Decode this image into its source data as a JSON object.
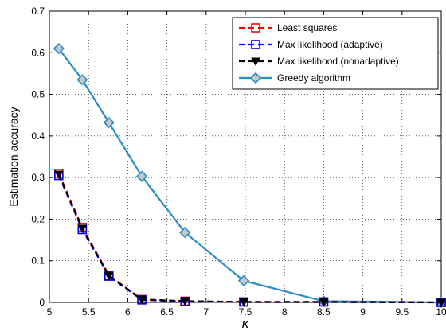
{
  "chart_data": {
    "type": "line",
    "title": "",
    "xlabel": "κ",
    "ylabel": "Estimation accuracy",
    "xlim": [
      5,
      10
    ],
    "ylim": [
      0,
      0.7
    ],
    "xticks": [
      5,
      5.5,
      6,
      6.5,
      7,
      7.5,
      8,
      8.5,
      9,
      9.5,
      10
    ],
    "xtick_labels": [
      "5",
      "5.5",
      "6",
      "6.5",
      "7",
      "7.5",
      "8",
      "8.5",
      "9",
      "9.5",
      "10"
    ],
    "yticks": [
      0,
      0.1,
      0.2,
      0.3,
      0.4,
      0.5,
      0.6,
      0.7
    ],
    "ytick_labels": [
      "0",
      "0.1",
      "0.2",
      "0.3",
      "0.4",
      "0.5",
      "0.6",
      "0.7"
    ],
    "grid": true,
    "legend_position": "top-right",
    "x": [
      5.12,
      5.42,
      5.76,
      6.18,
      6.73,
      7.48,
      8.5,
      10.0
    ],
    "series": [
      {
        "name": "Least squares",
        "color": "#ff0000",
        "line_style": "dashed",
        "marker": "square",
        "values": [
          0.31,
          0.18,
          0.065,
          0.007,
          0.003,
          0.001,
          0.001,
          0.0
        ]
      },
      {
        "name": "Max likelihood (adaptive)",
        "color": "#0000ff",
        "line_style": "dashed",
        "marker": "square",
        "values": [
          0.305,
          0.175,
          0.063,
          0.006,
          0.002,
          0.001,
          0.001,
          0.0
        ]
      },
      {
        "name": "Max likelihood (nonadaptive)",
        "color": "#000000",
        "line_style": "dashed",
        "marker": "triangle-down",
        "values": [
          0.308,
          0.178,
          0.064,
          0.007,
          0.003,
          0.001,
          0.001,
          0.0
        ]
      },
      {
        "name": "Greedy algorithm",
        "color": "#2a8dc9",
        "line_style": "solid",
        "marker": "diamond",
        "values": [
          0.61,
          0.535,
          0.432,
          0.303,
          0.168,
          0.052,
          0.003,
          0.0
        ]
      }
    ]
  }
}
